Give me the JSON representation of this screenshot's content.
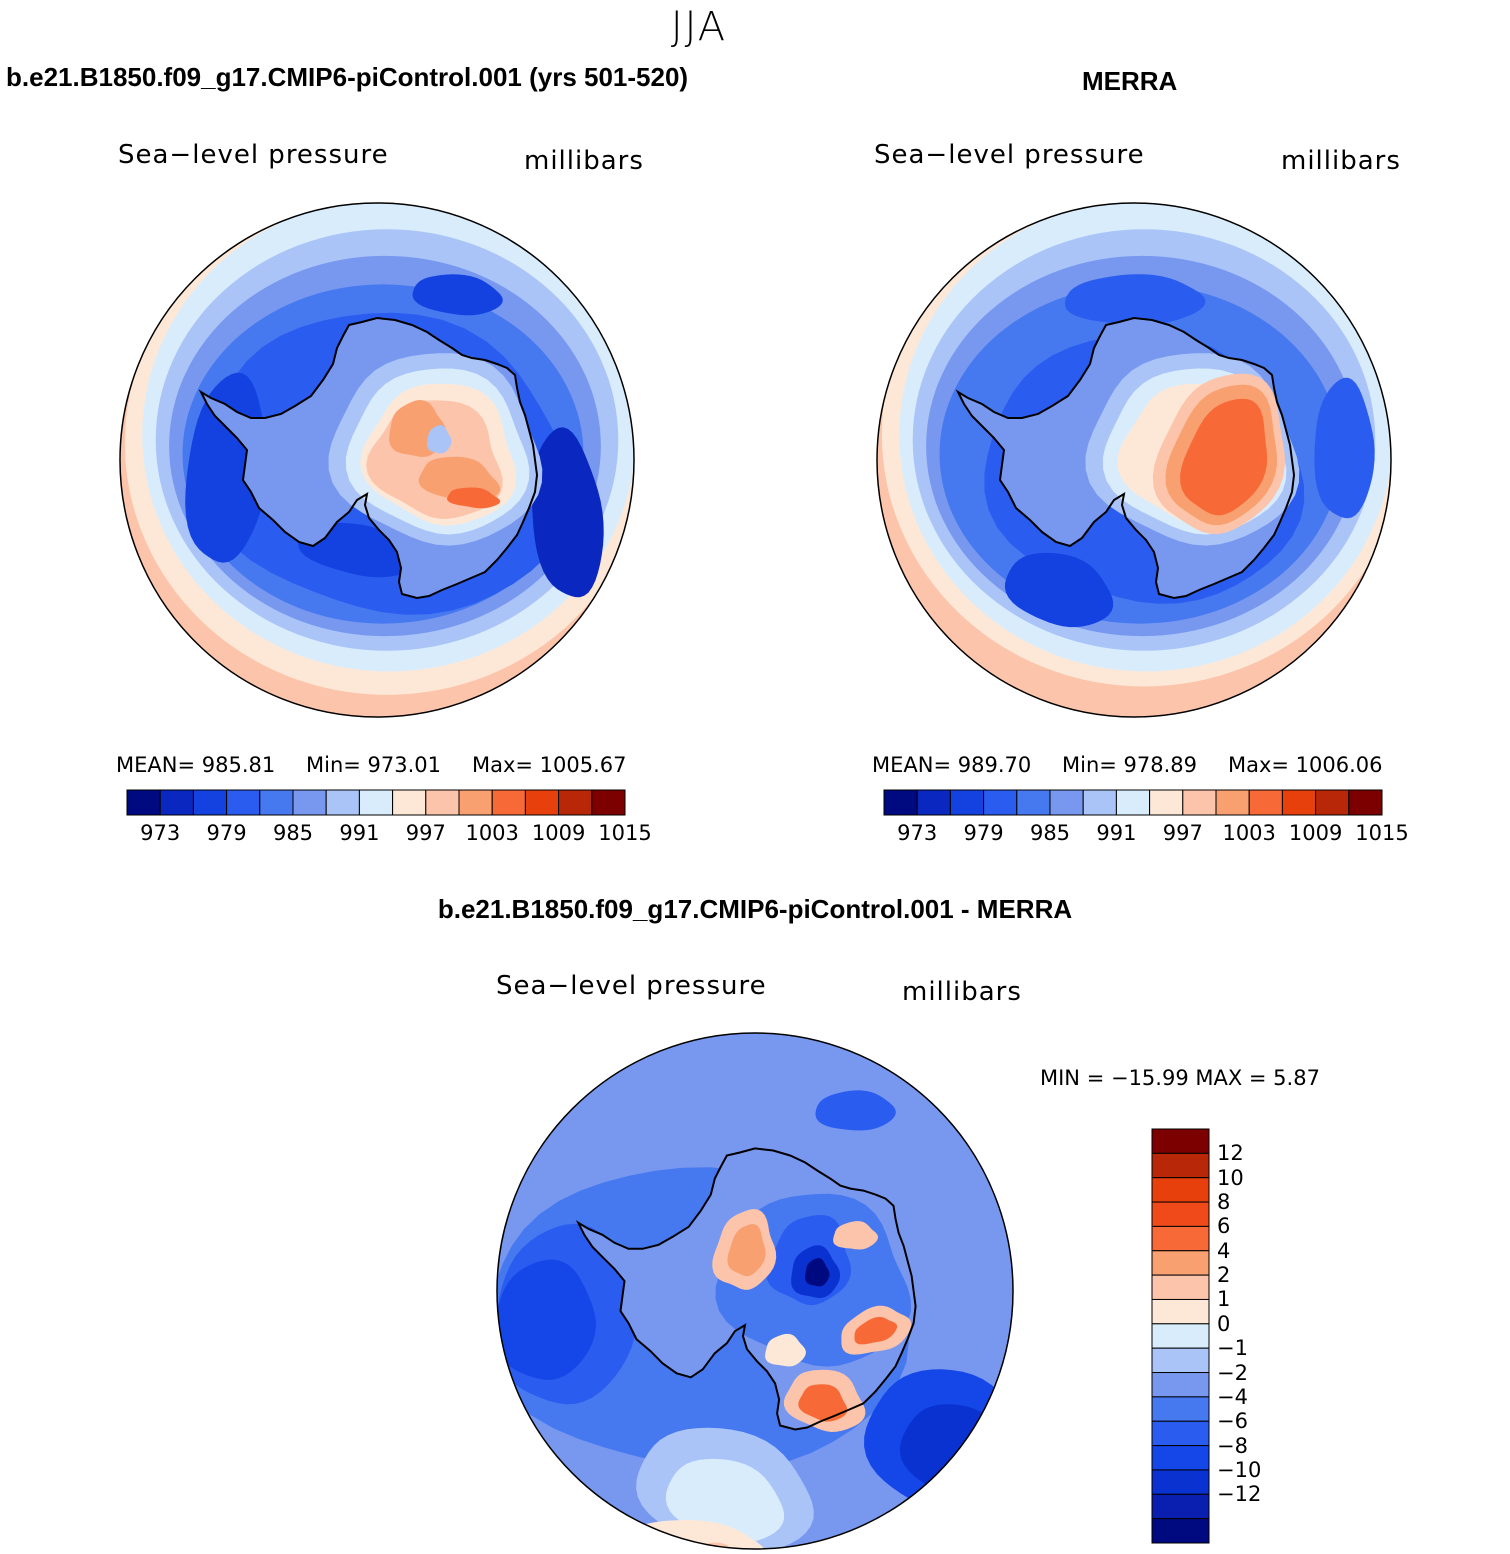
{
  "title": "JJA",
  "colors": {
    "palette14": [
      "#000a80",
      "#0a28c0",
      "#1442e0",
      "#2a5cf0",
      "#4678f0",
      "#7898f0",
      "#aac4f8",
      "#d8ecfc",
      "#fde8d8",
      "#fcc4aa",
      "#f8a070",
      "#f76a38",
      "#e8400c",
      "#b82808",
      "#7c0000"
    ],
    "palette16": [
      "#000a80",
      "#0a1eb0",
      "#0a32d0",
      "#1446e8",
      "#2a5cf0",
      "#4678f0",
      "#7898f0",
      "#aac4f8",
      "#d8ecfc",
      "#fde8d8",
      "#fcc4aa",
      "#f8a070",
      "#f76a38",
      "#f04a1a",
      "#e8400c",
      "#b82808",
      "#7c0000"
    ]
  },
  "panels": [
    {
      "title": "b.e21.B1850.f09_g17.CMIP6-piControl.001 (yrs 501-520)",
      "left_label": "Sea−level pressure",
      "right_label": "millibars",
      "stats": {
        "mean": "MEAN=  985.81",
        "min": "Min=  973.01",
        "max": "Max=  1005.67"
      },
      "colorbar_ticks": [
        "973",
        "979",
        "985",
        "991",
        "997",
        "1003",
        "1009",
        "1015"
      ]
    },
    {
      "title": "MERRA",
      "left_label": "Sea−level pressure",
      "right_label": "millibars",
      "stats": {
        "mean": "MEAN=  989.70",
        "min": "Min=  978.89",
        "max": "Max=  1006.06"
      },
      "colorbar_ticks": [
        "973",
        "979",
        "985",
        "991",
        "997",
        "1003",
        "1009",
        "1015"
      ]
    },
    {
      "title": "b.e21.B1850.f09_g17.CMIP6-piControl.001 - MERRA",
      "left_label": "Sea−level pressure",
      "right_label": "millibars",
      "stats": {
        "minmax": "MIN = −15.99  MAX =    5.87"
      },
      "colorbar_ticks": [
        "12",
        "10",
        "8",
        "6",
        "4",
        "2",
        "1",
        "0",
        "−1",
        "−2",
        "−4",
        "−6",
        "−8",
        "−10",
        "−12"
      ]
    }
  ],
  "chart_data": [
    {
      "type": "heatmap",
      "projection": "south-polar-stereographic",
      "variable": "Sea-level pressure",
      "units": "millibars",
      "mean": 985.81,
      "min": 973.01,
      "max": 1005.67,
      "contour_levels": [
        973,
        976,
        979,
        982,
        985,
        988,
        991,
        994,
        997,
        1000,
        1003,
        1006,
        1009,
        1012,
        1015
      ]
    },
    {
      "type": "heatmap",
      "projection": "south-polar-stereographic",
      "variable": "Sea-level pressure",
      "units": "millibars",
      "mean": 989.7,
      "min": 978.89,
      "max": 1006.06,
      "contour_levels": [
        973,
        976,
        979,
        982,
        985,
        988,
        991,
        994,
        997,
        1000,
        1003,
        1006,
        1009,
        1012,
        1015
      ]
    },
    {
      "type": "heatmap",
      "projection": "south-polar-stereographic",
      "variable": "Sea-level pressure difference",
      "units": "millibars",
      "min": -15.99,
      "max": 5.87,
      "contour_levels": [
        -12,
        -10,
        -8,
        -6,
        -4,
        -2,
        -1,
        0,
        1,
        2,
        4,
        6,
        8,
        10,
        12
      ]
    }
  ]
}
